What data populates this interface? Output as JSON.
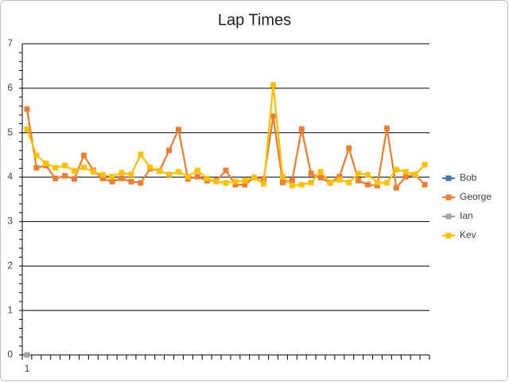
{
  "chart_data": {
    "type": "line",
    "title": "Lap Times",
    "categories": [
      "1",
      null,
      null,
      null,
      null,
      null,
      null,
      null,
      null,
      null,
      null,
      null,
      null,
      null,
      null,
      null,
      null,
      null,
      null,
      null,
      null,
      null,
      null,
      null,
      null,
      null,
      null,
      null,
      null,
      null,
      null,
      null,
      null,
      null,
      null,
      null,
      null,
      null,
      null,
      null,
      null,
      null,
      null
    ],
    "series": [
      {
        "name": "Bob",
        "color": "#4472c4",
        "values": [
          0,
          null,
          null,
          null,
          null,
          null,
          null,
          null,
          null,
          null,
          null,
          null,
          null,
          null,
          null,
          null,
          null,
          null,
          null,
          null,
          null,
          null,
          null,
          null,
          null,
          null,
          null,
          null,
          null,
          null,
          null,
          null,
          null,
          null,
          null,
          null,
          null,
          null,
          null,
          null,
          null,
          null,
          null
        ]
      },
      {
        "name": "George",
        "color": "#ed7d31",
        "values": [
          5.53,
          4.21,
          4.26,
          3.97,
          4.03,
          3.96,
          4.49,
          4.15,
          3.97,
          3.9,
          3.97,
          3.9,
          3.87,
          4.19,
          4.14,
          4.6,
          5.07,
          3.96,
          4.01,
          3.92,
          3.92,
          4.15,
          3.83,
          3.83,
          3.99,
          3.96,
          5.37,
          3.88,
          3.92,
          5.08,
          4.08,
          3.99,
          3.87,
          4.01,
          4.65,
          3.92,
          3.83,
          3.81,
          5.1,
          3.76,
          4.01,
          4.06,
          3.83
        ]
      },
      {
        "name": "Ian",
        "color": "#a5a5a5",
        "values": [
          0,
          null,
          null,
          null,
          null,
          null,
          null,
          null,
          null,
          null,
          null,
          null,
          null,
          null,
          null,
          null,
          null,
          null,
          null,
          null,
          null,
          null,
          null,
          null,
          null,
          null,
          null,
          null,
          null,
          null,
          null,
          null,
          null,
          null,
          null,
          null,
          null,
          null,
          null,
          null,
          null,
          null,
          null
        ]
      },
      {
        "name": "Kev",
        "color": "#ffc000",
        "values": [
          5.08,
          4.49,
          4.31,
          4.21,
          4.26,
          4.14,
          4.22,
          4.12,
          4.05,
          4.01,
          4.1,
          4.06,
          4.51,
          4.22,
          4.14,
          4.06,
          4.12,
          4.01,
          4.15,
          3.97,
          3.9,
          3.87,
          3.9,
          3.92,
          3.99,
          3.85,
          6.07,
          4.01,
          3.81,
          3.83,
          3.88,
          4.12,
          3.88,
          3.94,
          3.88,
          4.08,
          4.05,
          3.88,
          3.87,
          4.17,
          4.12,
          4.06,
          4.28
        ]
      }
    ],
    "ylim": [
      0,
      7
    ],
    "yticks": [
      0,
      1,
      2,
      3,
      4,
      5,
      6,
      7
    ],
    "grid": true,
    "legend": "right"
  }
}
